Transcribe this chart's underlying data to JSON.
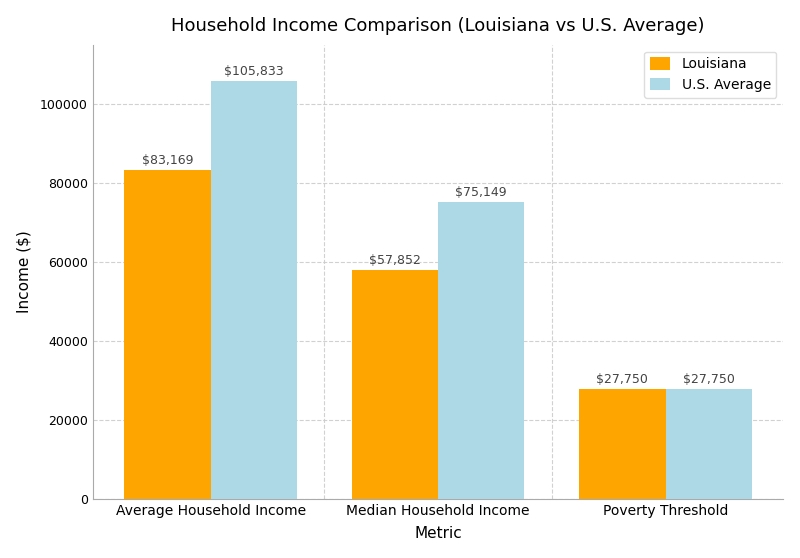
{
  "title": "Household Income Comparison (Louisiana vs U.S. Average)",
  "xlabel": "Metric",
  "ylabel": "Income ($)",
  "categories": [
    "Average Household Income",
    "Median Household Income",
    "Poverty Threshold"
  ],
  "louisiana_values": [
    83169,
    57852,
    27750
  ],
  "us_values": [
    105833,
    75149,
    27750
  ],
  "louisiana_color": "#FFA500",
  "us_color": "#ADD8E6",
  "background_color": "#FFFFFF",
  "bar_width": 0.38,
  "ylim": [
    0,
    115000
  ],
  "legend_labels": [
    "Louisiana",
    "U.S. Average"
  ],
  "label_fontsize": 9,
  "title_fontsize": 13,
  "axis_label_fontsize": 11,
  "ytick_step": 20000,
  "spine_color": "#AAAAAA"
}
